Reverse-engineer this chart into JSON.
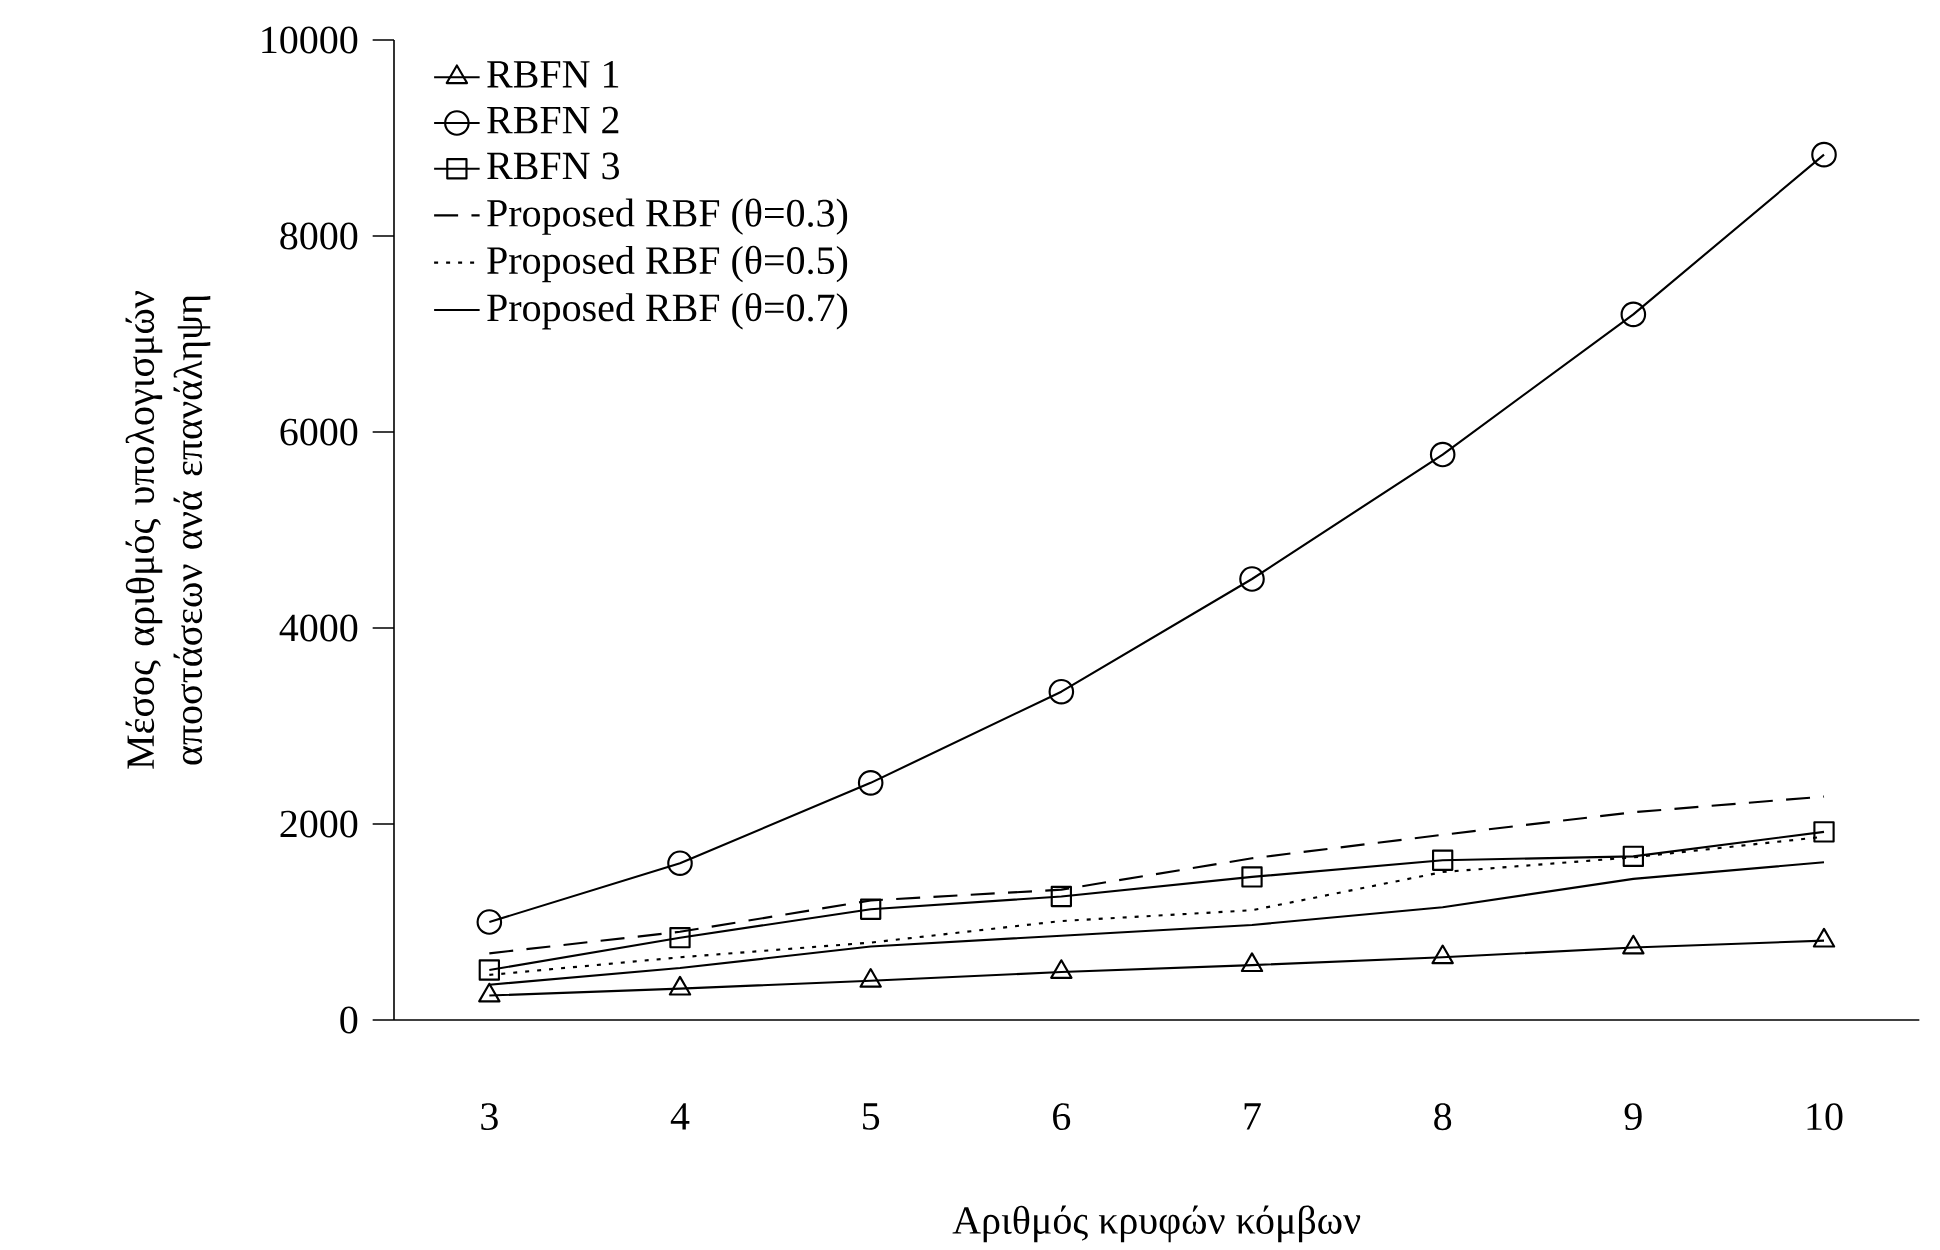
{
  "chart_data": {
    "type": "line",
    "xlabel": "Αριθμός κρυφών κόμβων",
    "ylabel": "Μέσος αριθμός υπολογισμών αποστάσεων ανά επανάληψη",
    "categories": [
      "3",
      "4",
      "5",
      "6",
      "7",
      "8",
      "9",
      "10"
    ],
    "ylim": [
      0,
      10000
    ],
    "yticks": [
      0,
      2000,
      4000,
      6000,
      8000,
      10000
    ],
    "grid": false,
    "legend": "top left",
    "series": [
      {
        "name": "RBFN 1",
        "color": "#000000",
        "marker": "triangle",
        "line_style": "solid",
        "values": [
          250,
          320,
          400,
          490,
          560,
          640,
          740,
          810
        ]
      },
      {
        "name": "RBFN 2",
        "color": "#000000",
        "marker": "circle",
        "line_style": "solid",
        "values": [
          1000,
          1600,
          2420,
          3350,
          4500,
          5770,
          7200,
          8830
        ]
      },
      {
        "name": "RBFN 3",
        "color": "#000000",
        "marker": "square",
        "line_style": "solid",
        "values": [
          510,
          840,
          1130,
          1260,
          1460,
          1630,
          1670,
          1920
        ]
      },
      {
        "name": "Proposed RBF (θ=0.3)",
        "color": "#000000",
        "marker": "none",
        "line_style": "dashed",
        "values": [
          680,
          900,
          1220,
          1330,
          1650,
          1890,
          2120,
          2280
        ]
      },
      {
        "name": "Proposed RBF (θ=0.5)",
        "color": "#000000",
        "marker": "none",
        "line_style": "dotted",
        "values": [
          460,
          640,
          790,
          1010,
          1120,
          1510,
          1660,
          1870
        ]
      },
      {
        "name": "Proposed RBF (θ=0.7)",
        "color": "#000000",
        "marker": "none",
        "line_style": "solid",
        "values": [
          360,
          530,
          750,
          860,
          970,
          1150,
          1440,
          1610
        ]
      }
    ]
  }
}
